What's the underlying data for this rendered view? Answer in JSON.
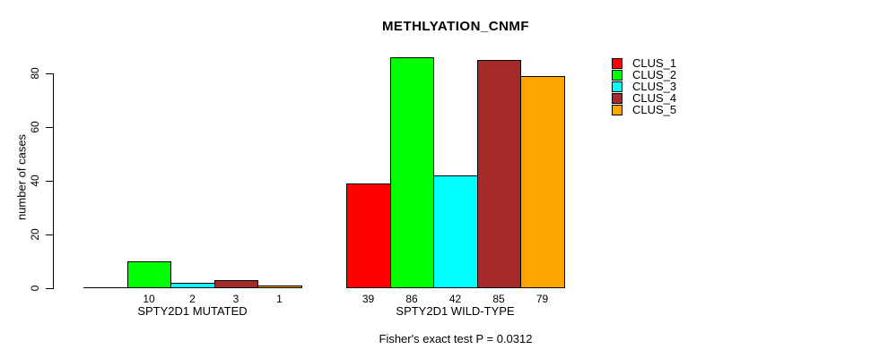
{
  "title": "METHLYATION_CNMF",
  "annotation": "Fisher's exact test P = 0.0312",
  "y_axis": {
    "label": "number of cases",
    "ticks": [
      0,
      20,
      40,
      60,
      80
    ]
  },
  "legend": {
    "items": [
      {
        "label": "CLUS_1",
        "color": "#FF0000"
      },
      {
        "label": "CLUS_2",
        "color": "#00FF00"
      },
      {
        "label": "CLUS_3",
        "color": "#00FFFF"
      },
      {
        "label": "CLUS_4",
        "color": "#A52A2A"
      },
      {
        "label": "CLUS_5",
        "color": "#FFA500"
      }
    ]
  },
  "chart_data": {
    "type": "bar",
    "title": "METHLYATION_CNMF",
    "xlabel": "",
    "ylabel": "number of cases",
    "ylim": [
      0,
      80
    ],
    "yticks": [
      0,
      20,
      40,
      60,
      80
    ],
    "grid": false,
    "legend_position": "right",
    "groups": [
      "SPTY2D1 MUTATED",
      "SPTY2D1 WILD-TYPE"
    ],
    "series": [
      {
        "name": "CLUS_1",
        "color": "#FF0000",
        "values": [
          0,
          39
        ]
      },
      {
        "name": "CLUS_2",
        "color": "#00FF00",
        "values": [
          10,
          86
        ]
      },
      {
        "name": "CLUS_3",
        "color": "#00FFFF",
        "values": [
          2,
          42
        ]
      },
      {
        "name": "CLUS_4",
        "color": "#A52A2A",
        "values": [
          3,
          85
        ]
      },
      {
        "name": "CLUS_5",
        "color": "#FFA500",
        "values": [
          1,
          79
        ]
      }
    ],
    "bar_value_labels": [
      [
        "",
        "10",
        "2",
        "3",
        "1"
      ],
      [
        "39",
        "86",
        "42",
        "85",
        "79"
      ]
    ],
    "annotation": "Fisher's exact test P = 0.0312"
  }
}
